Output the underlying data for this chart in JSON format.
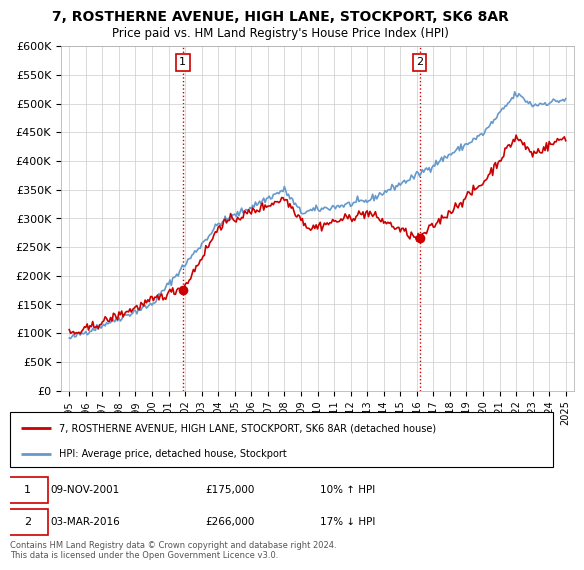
{
  "title": "7, ROSTHERNE AVENUE, HIGH LANE, STOCKPORT, SK6 8AR",
  "subtitle": "Price paid vs. HM Land Registry's House Price Index (HPI)",
  "ylabel_ticks": [
    "£0",
    "£50K",
    "£100K",
    "£150K",
    "£200K",
    "£250K",
    "£300K",
    "£350K",
    "£400K",
    "£450K",
    "£500K",
    "£550K",
    "£600K"
  ],
  "ylim": [
    0,
    600000
  ],
  "ytick_vals": [
    0,
    50000,
    100000,
    150000,
    200000,
    250000,
    300000,
    350000,
    400000,
    450000,
    500000,
    550000,
    600000
  ],
  "xmin_year": 1995,
  "xmax_year": 2025,
  "xtick_years": [
    1995,
    1996,
    1997,
    1998,
    1999,
    2000,
    2001,
    2002,
    2003,
    2004,
    2005,
    2006,
    2007,
    2008,
    2009,
    2010,
    2011,
    2012,
    2013,
    2014,
    2015,
    2016,
    2017,
    2018,
    2019,
    2020,
    2021,
    2022,
    2023,
    2024,
    2025
  ],
  "hpi_color": "#6699cc",
  "price_color": "#cc0000",
  "sale1_x": 2001.86,
  "sale1_y": 175000,
  "sale1_label": "1",
  "sale2_x": 2016.17,
  "sale2_y": 266000,
  "sale2_label": "2",
  "vline_color": "#cc0000",
  "legend_title1": "7, ROSTHERNE AVENUE, HIGH LANE, STOCKPORT, SK6 8AR (detached house)",
  "legend_title2": "HPI: Average price, detached house, Stockport",
  "footnote": "Contains HM Land Registry data © Crown copyright and database right 2024.\nThis data is licensed under the Open Government Licence v3.0.",
  "background_color": "#ffffff",
  "grid_color": "#cccccc"
}
